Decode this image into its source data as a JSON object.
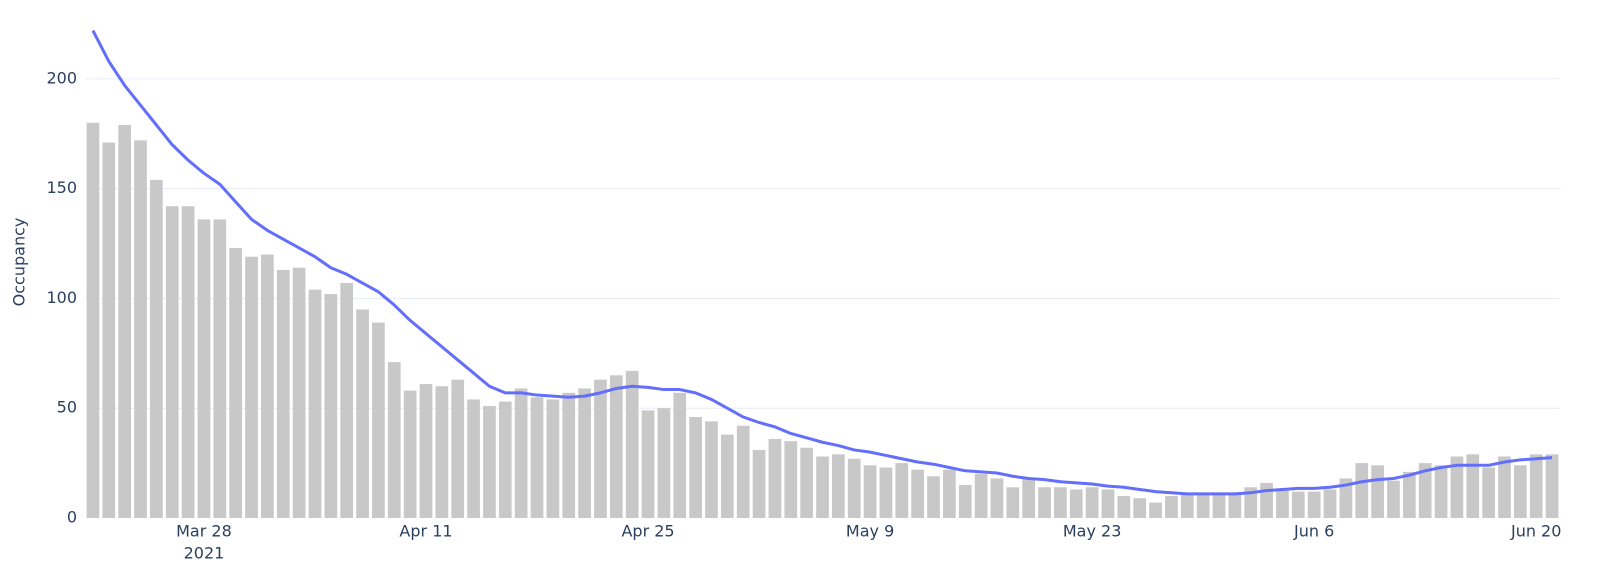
{
  "chart_data": {
    "type": "combo",
    "y_label": "Occupancy",
    "x": [
      "2021-03-21",
      "2021-03-22",
      "2021-03-23",
      "2021-03-24",
      "2021-03-25",
      "2021-03-26",
      "2021-03-27",
      "2021-03-28",
      "2021-03-29",
      "2021-03-30",
      "2021-03-31",
      "2021-04-01",
      "2021-04-02",
      "2021-04-03",
      "2021-04-04",
      "2021-04-05",
      "2021-04-06",
      "2021-04-07",
      "2021-04-08",
      "2021-04-09",
      "2021-04-10",
      "2021-04-11",
      "2021-04-12",
      "2021-04-13",
      "2021-04-14",
      "2021-04-15",
      "2021-04-16",
      "2021-04-17",
      "2021-04-18",
      "2021-04-19",
      "2021-04-20",
      "2021-04-21",
      "2021-04-22",
      "2021-04-23",
      "2021-04-24",
      "2021-04-25",
      "2021-04-26",
      "2021-04-27",
      "2021-04-28",
      "2021-04-29",
      "2021-04-30",
      "2021-05-01",
      "2021-05-02",
      "2021-05-03",
      "2021-05-04",
      "2021-05-05",
      "2021-05-06",
      "2021-05-07",
      "2021-05-08",
      "2021-05-09",
      "2021-05-10",
      "2021-05-11",
      "2021-05-12",
      "2021-05-13",
      "2021-05-14",
      "2021-05-15",
      "2021-05-16",
      "2021-05-17",
      "2021-05-18",
      "2021-05-19",
      "2021-05-20",
      "2021-05-21",
      "2021-05-22",
      "2021-05-23",
      "2021-05-24",
      "2021-05-25",
      "2021-05-26",
      "2021-05-27",
      "2021-05-28",
      "2021-05-29",
      "2021-05-30",
      "2021-05-31",
      "2021-06-01",
      "2021-06-02",
      "2021-06-03",
      "2021-06-04",
      "2021-06-05",
      "2021-06-06",
      "2021-06-07",
      "2021-06-08",
      "2021-06-09",
      "2021-06-10",
      "2021-06-11",
      "2021-06-12",
      "2021-06-13",
      "2021-06-14",
      "2021-06-15",
      "2021-06-16",
      "2021-06-17",
      "2021-06-18",
      "2021-06-19",
      "2021-06-20",
      "2021-06-21"
    ],
    "series": [
      {
        "type": "bar",
        "color": "#c8c8c8",
        "values": [
          180,
          171,
          179,
          172,
          154,
          142,
          142,
          136,
          136,
          123,
          119,
          120,
          113,
          114,
          104,
          102,
          107,
          95,
          89,
          71,
          58,
          61,
          60,
          63,
          54,
          51,
          53,
          59,
          55,
          54,
          57,
          59,
          63,
          65,
          67,
          49,
          50,
          57,
          46,
          44,
          38,
          42,
          31,
          36,
          35,
          32,
          28,
          29,
          27,
          24,
          23,
          25,
          22,
          19,
          22,
          15,
          20,
          18,
          14,
          18,
          14,
          14,
          13,
          14,
          13,
          10,
          9,
          7,
          10,
          11,
          11,
          11,
          11,
          14,
          16,
          13,
          12,
          12,
          13,
          18,
          25,
          24,
          17,
          21,
          25,
          24,
          28,
          29,
          23,
          28,
          24,
          29,
          29
        ]
      },
      {
        "type": "line",
        "color": "#636efa",
        "values": [
          222,
          208,
          197,
          188,
          179,
          170,
          163,
          157,
          152,
          144,
          136,
          131,
          127,
          123,
          119,
          114,
          111,
          107,
          103,
          97,
          90,
          84,
          78,
          72,
          66,
          60,
          57,
          57,
          56,
          55.5,
          55,
          55.5,
          57,
          59,
          60,
          59.5,
          58.5,
          58.5,
          57,
          54,
          50,
          46,
          43.5,
          41.5,
          38.5,
          36.5,
          34.5,
          33,
          31,
          30,
          28.5,
          27,
          25.5,
          24.5,
          23,
          21.5,
          21,
          20.5,
          19,
          18,
          17.5,
          16.5,
          16,
          15.5,
          14.5,
          14,
          13,
          12,
          11.5,
          11,
          11,
          11,
          11,
          11.5,
          12.5,
          13,
          13.5,
          13.5,
          14,
          15,
          16.5,
          17.5,
          18,
          19.5,
          21.5,
          23,
          24,
          24,
          24,
          25.5,
          26.5,
          27,
          27.5
        ]
      }
    ],
    "xlim": [
      "2021-03-20T12:00:00Z",
      "2021-06-21T12:00:00Z"
    ],
    "xticks": [
      {
        "value": "2021-03-28",
        "label": "Mar 28"
      },
      {
        "value": "2021-04-11",
        "label": "Apr 11"
      },
      {
        "value": "2021-04-25",
        "label": "Apr 25"
      },
      {
        "value": "2021-05-09",
        "label": "May 9"
      },
      {
        "value": "2021-05-23",
        "label": "May 23"
      },
      {
        "value": "2021-06-06",
        "label": "Jun 6"
      },
      {
        "value": "2021-06-20",
        "label": "Jun 20"
      }
    ],
    "x_year_label": "2021",
    "ylim": [
      0,
      225
    ],
    "yticks": [
      0,
      50,
      100,
      150,
      200
    ],
    "grid": true
  }
}
